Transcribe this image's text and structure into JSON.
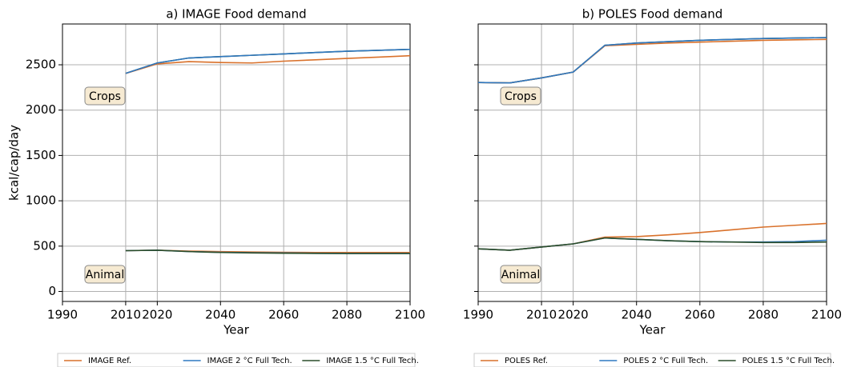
{
  "chart_data": [
    {
      "type": "line",
      "title": "a) IMAGE Food demand",
      "x_label": "Year",
      "y_label": "kcal/cap/day",
      "x": [
        2010,
        2020,
        2030,
        2040,
        2050,
        2060,
        2070,
        2080,
        2090,
        2100
      ],
      "xlim": [
        1990,
        2100
      ],
      "xticks": [
        1990,
        2010,
        2020,
        2040,
        2060,
        2080,
        2100
      ],
      "ylim": [
        -110,
        2950
      ],
      "yticks": [
        0,
        500,
        1000,
        1500,
        2000,
        2500
      ],
      "show_ytick_labels": true,
      "grid": true,
      "annotations": [
        "Crops",
        "Animal"
      ],
      "series": [
        {
          "name": "IMAGE Ref.",
          "color": "#d9712b",
          "crops": [
            2405,
            2510,
            2535,
            2525,
            2520,
            2540,
            2555,
            2570,
            2585,
            2600
          ],
          "animal": [
            450,
            455,
            445,
            440,
            435,
            432,
            430,
            430,
            430,
            430
          ]
        },
        {
          "name": "IMAGE 2 °C Full Tech.",
          "color": "#2f78c0",
          "crops": [
            2405,
            2520,
            2575,
            2590,
            2605,
            2620,
            2635,
            2650,
            2660,
            2670
          ],
          "animal": [
            450,
            455,
            440,
            432,
            428,
            425,
            422,
            420,
            420,
            420
          ]
        },
        {
          "name": "IMAGE 1.5 °C Full Tech.",
          "color": "#2a4d2a",
          "crops": [
            2405,
            2520,
            2575,
            2590,
            2605,
            2620,
            2635,
            2650,
            2660,
            2670
          ],
          "animal": [
            450,
            455,
            440,
            430,
            425,
            422,
            420,
            418,
            418,
            418
          ]
        }
      ]
    },
    {
      "type": "line",
      "title": "b) POLES Food demand",
      "x_label": "Year",
      "x": [
        1990,
        2000,
        2010,
        2020,
        2030,
        2040,
        2050,
        2060,
        2070,
        2080,
        2090,
        2100
      ],
      "xlim": [
        1990,
        2100
      ],
      "xticks": [
        1990,
        2010,
        2020,
        2040,
        2060,
        2080,
        2100
      ],
      "ylim": [
        -110,
        2950
      ],
      "yticks": [
        0,
        500,
        1000,
        1500,
        2000,
        2500
      ],
      "show_ytick_labels": false,
      "grid": true,
      "annotations": [
        "Crops",
        "Animal"
      ],
      "series": [
        {
          "name": "POLES Ref.",
          "color": "#d9712b",
          "crops": [
            2305,
            2300,
            2355,
            2420,
            2710,
            2725,
            2740,
            2750,
            2760,
            2770,
            2775,
            2780
          ],
          "animal": [
            470,
            455,
            490,
            525,
            600,
            605,
            625,
            650,
            680,
            710,
            730,
            750
          ]
        },
        {
          "name": "POLES 2 °C Full Tech.",
          "color": "#2f78c0",
          "crops": [
            2305,
            2300,
            2355,
            2420,
            2715,
            2740,
            2755,
            2770,
            2780,
            2790,
            2795,
            2800
          ],
          "animal": [
            470,
            455,
            490,
            525,
            590,
            575,
            560,
            550,
            545,
            545,
            550,
            565
          ]
        },
        {
          "name": "POLES 1.5 °C Full Tech.",
          "color": "#2a4d2a",
          "crops": [
            2305,
            2300,
            2355,
            2420,
            2715,
            2740,
            2755,
            2770,
            2780,
            2790,
            2795,
            2800
          ],
          "animal": [
            470,
            455,
            490,
            525,
            590,
            575,
            560,
            550,
            545,
            540,
            540,
            545
          ]
        }
      ]
    }
  ]
}
